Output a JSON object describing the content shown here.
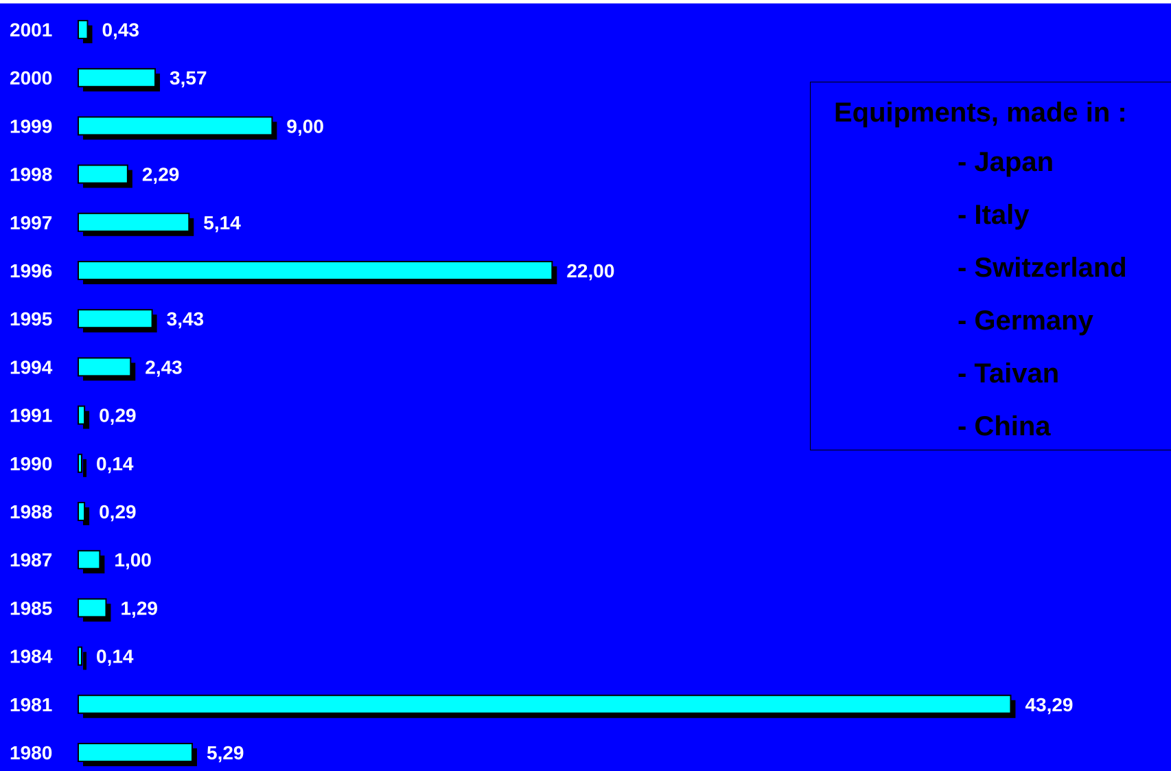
{
  "colors": {
    "background": "#0000ff",
    "bar_fill": "#00ffff",
    "bar_shadow": "#000000",
    "label_text": "#ffffff",
    "legend_text": "#000000"
  },
  "legend": {
    "title": "Equipments,  made in :",
    "items": [
      "- Japan",
      "- Italy",
      "- Switzerland",
      "- Germany",
      "- Taivan",
      "- China"
    ]
  },
  "chart_data": {
    "type": "bar",
    "orientation": "horizontal",
    "categories": [
      "2001",
      "2000",
      "1999",
      "1998",
      "1997",
      "1996",
      "1995",
      "1994",
      "1991",
      "1990",
      "1988",
      "1987",
      "1985",
      "1984",
      "1981",
      "1980"
    ],
    "values": [
      0.43,
      3.57,
      9.0,
      2.29,
      5.14,
      22.0,
      3.43,
      2.43,
      0.29,
      0.14,
      0.29,
      1.0,
      1.29,
      0.14,
      43.29,
      5.29
    ],
    "value_labels": [
      "0,43",
      "3,57",
      "9,00",
      "2,29",
      "5,14",
      "22,00",
      "3,43",
      "2,43",
      "0,29",
      "0,14",
      "0,29",
      "1,00",
      "1,29",
      "0,14",
      "43,29",
      "5,29"
    ],
    "title": "",
    "xlabel": "",
    "ylabel": "",
    "grid": false
  }
}
